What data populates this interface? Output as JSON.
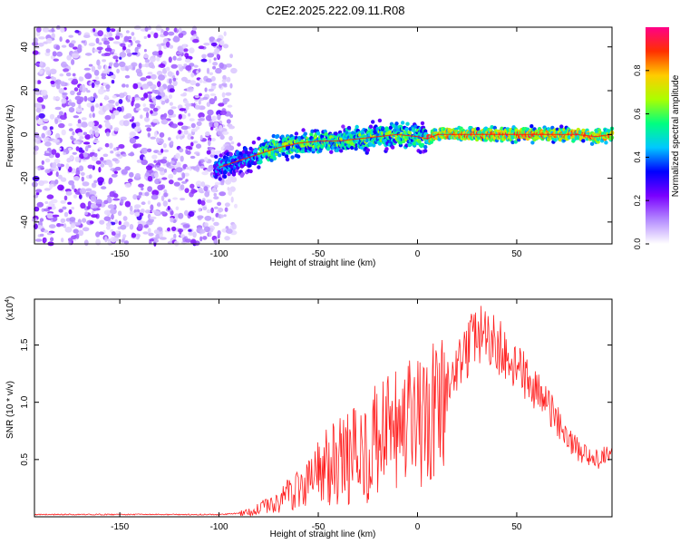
{
  "title": "C2E2.2025.222.09.11.R08",
  "chart_data": [
    {
      "type": "heatmap",
      "xlabel": "Height of straight line (km)",
      "ylabel": "Frequency (Hz)",
      "xlim": [
        -193,
        98
      ],
      "ylim": [
        -50,
        49
      ],
      "xticks": [
        -150,
        -100,
        -50,
        0,
        50
      ],
      "yticks": [
        -40,
        -20,
        0,
        20,
        40
      ],
      "colorbar": {
        "label": "Normalized spectral amplitude",
        "ticks": [
          "0.0",
          "0.2",
          "0.4",
          "0.6",
          "0.8"
        ],
        "range": [
          0,
          1
        ],
        "colors": [
          "#ffffff",
          "#b48bff",
          "#7a00ff",
          "#0000ff",
          "#00c8ff",
          "#00ff80",
          "#aaff00",
          "#ffcc00",
          "#ff3000",
          "#ff0088"
        ]
      },
      "ridge": {
        "x": [
          -100,
          -90,
          -80,
          -70,
          -60,
          -50,
          -40,
          -30,
          -20,
          -10,
          0,
          5,
          10,
          20,
          40,
          60,
          80,
          90,
          98
        ],
        "y": [
          -15,
          -12,
          -9,
          -6,
          -4,
          -3,
          -3,
          -2,
          -1,
          0,
          -1,
          -2,
          0,
          0,
          0,
          0,
          0,
          -1,
          0
        ]
      },
      "noise_region_x": [
        -193,
        -90
      ]
    },
    {
      "type": "line",
      "xlabel": "Height of straight line (km)",
      "ylabel": "SNR (10 * v/v)",
      "y_multiplier": "(x10",
      "y_multiplier_exp": "4",
      "y_multiplier_close": ")",
      "xlim": [
        -193,
        98
      ],
      "ylim": [
        0,
        1.9
      ],
      "xticks": [
        -150,
        -100,
        -50,
        0,
        50
      ],
      "yticks": [
        "0.5",
        "1.0",
        "1.5"
      ],
      "color": "#ff2020",
      "envelope": {
        "x": [
          -193,
          -100,
          -90,
          -80,
          -70,
          -60,
          -50,
          -40,
          -30,
          -20,
          -10,
          0,
          10,
          20,
          30,
          40,
          50,
          60,
          70,
          80,
          90,
          98
        ],
        "y": [
          0.02,
          0.02,
          0.03,
          0.08,
          0.15,
          0.3,
          0.45,
          0.55,
          0.65,
          0.75,
          0.85,
          0.9,
          1.0,
          1.3,
          1.6,
          1.5,
          1.3,
          1.1,
          0.85,
          0.6,
          0.5,
          0.55
        ]
      }
    }
  ]
}
